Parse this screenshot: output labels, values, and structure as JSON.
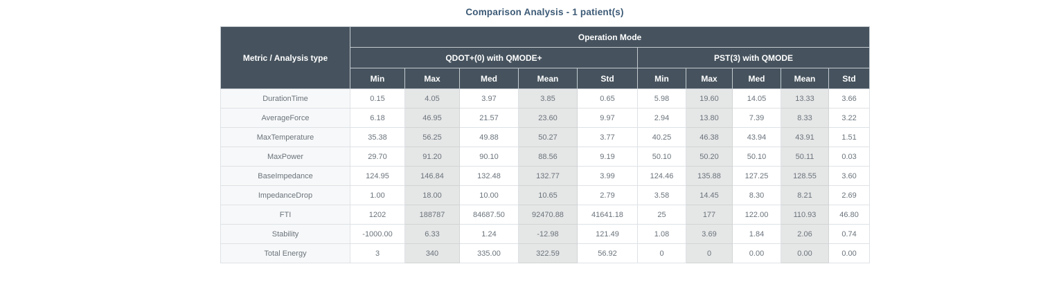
{
  "title": "Comparison Analysis - 1 patient(s)",
  "colors": {
    "header_background": "#46535e",
    "header_text": "#ffffff",
    "title_text": "#3c5a76",
    "shaded_column_background": "#e5e6e6",
    "metric_label_background": "#f7f8f9",
    "data_text": "#6a737b"
  },
  "chart_data": {
    "type": "table",
    "title": "Comparison Analysis - 1 patient(s)",
    "corner_header": "Metric / Analysis type",
    "top_header": "Operation Mode",
    "column_groups": [
      "QDOT+(0) with QMODE+",
      "PST(3) with QMODE"
    ],
    "stat_columns": [
      "Min",
      "Max",
      "Med",
      "Mean",
      "Std"
    ],
    "shaded_stat_columns": [
      "Max",
      "Mean"
    ],
    "rows": [
      {
        "metric": "DurationTime",
        "qdot": [
          "0.15",
          "4.05",
          "3.97",
          "3.85",
          "0.65"
        ],
        "pst": [
          "5.98",
          "19.60",
          "14.05",
          "13.33",
          "3.66"
        ]
      },
      {
        "metric": "AverageForce",
        "qdot": [
          "6.18",
          "46.95",
          "21.57",
          "23.60",
          "9.97"
        ],
        "pst": [
          "2.94",
          "13.80",
          "7.39",
          "8.33",
          "3.22"
        ]
      },
      {
        "metric": "MaxTemperature",
        "qdot": [
          "35.38",
          "56.25",
          "49.88",
          "50.27",
          "3.77"
        ],
        "pst": [
          "40.25",
          "46.38",
          "43.94",
          "43.91",
          "1.51"
        ]
      },
      {
        "metric": "MaxPower",
        "qdot": [
          "29.70",
          "91.20",
          "90.10",
          "88.56",
          "9.19"
        ],
        "pst": [
          "50.10",
          "50.20",
          "50.10",
          "50.11",
          "0.03"
        ]
      },
      {
        "metric": "BaseImpedance",
        "qdot": [
          "124.95",
          "146.84",
          "132.48",
          "132.77",
          "3.99"
        ],
        "pst": [
          "124.46",
          "135.88",
          "127.25",
          "128.55",
          "3.60"
        ]
      },
      {
        "metric": "ImpedanceDrop",
        "qdot": [
          "1.00",
          "18.00",
          "10.00",
          "10.65",
          "2.79"
        ],
        "pst": [
          "3.58",
          "14.45",
          "8.30",
          "8.21",
          "2.69"
        ]
      },
      {
        "metric": "FTI",
        "qdot": [
          "1202",
          "188787",
          "84687.50",
          "92470.88",
          "41641.18"
        ],
        "pst": [
          "25",
          "177",
          "122.00",
          "110.93",
          "46.80"
        ]
      },
      {
        "metric": "Stability",
        "qdot": [
          "-1000.00",
          "6.33",
          "1.24",
          "-12.98",
          "121.49"
        ],
        "pst": [
          "1.08",
          "3.69",
          "1.84",
          "2.06",
          "0.74"
        ]
      },
      {
        "metric": "Total Energy",
        "qdot": [
          "3",
          "340",
          "335.00",
          "322.59",
          "56.92"
        ],
        "pst": [
          "0",
          "0",
          "0.00",
          "0.00",
          "0.00"
        ]
      }
    ]
  }
}
